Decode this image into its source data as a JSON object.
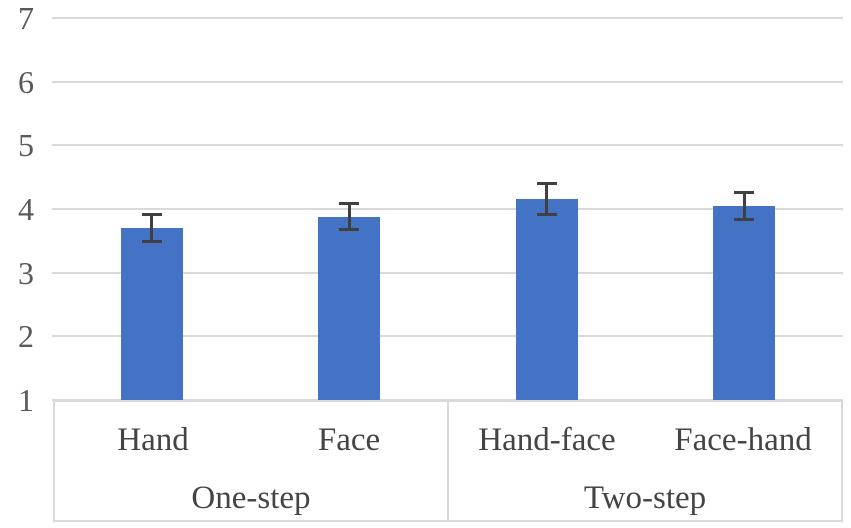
{
  "chart_data": {
    "type": "bar",
    "title": "",
    "xlabel": "",
    "ylabel": "",
    "legend": "none",
    "grid": true,
    "y_axis": {
      "min": 1,
      "max": 7,
      "ticks": [
        7,
        6,
        5,
        4,
        3,
        2,
        1
      ]
    },
    "categories": [
      "Hand",
      "Face",
      "Hand-face",
      "Face-hand"
    ],
    "values": [
      3.7,
      3.88,
      4.16,
      4.05
    ],
    "errors": [
      0.21,
      0.2,
      0.24,
      0.21
    ],
    "groups": [
      {
        "label": "One-step",
        "bars": [
          {
            "category": "Hand",
            "value": 3.7,
            "error": 0.21
          },
          {
            "category": "Face",
            "value": 3.88,
            "error": 0.2
          }
        ]
      },
      {
        "label": "Two-step",
        "bars": [
          {
            "category": "Hand-face",
            "value": 4.16,
            "error": 0.24
          },
          {
            "category": "Face-hand",
            "value": 4.05,
            "error": 0.21
          }
        ]
      }
    ],
    "colors": {
      "bar": "#4472C4",
      "gridline": "#D9D9D9",
      "error_bar": "#404040",
      "tick_text": "#595959",
      "category_text": "#444444",
      "table_border": "#D9D9D9",
      "background": "#FFFFFF"
    }
  }
}
